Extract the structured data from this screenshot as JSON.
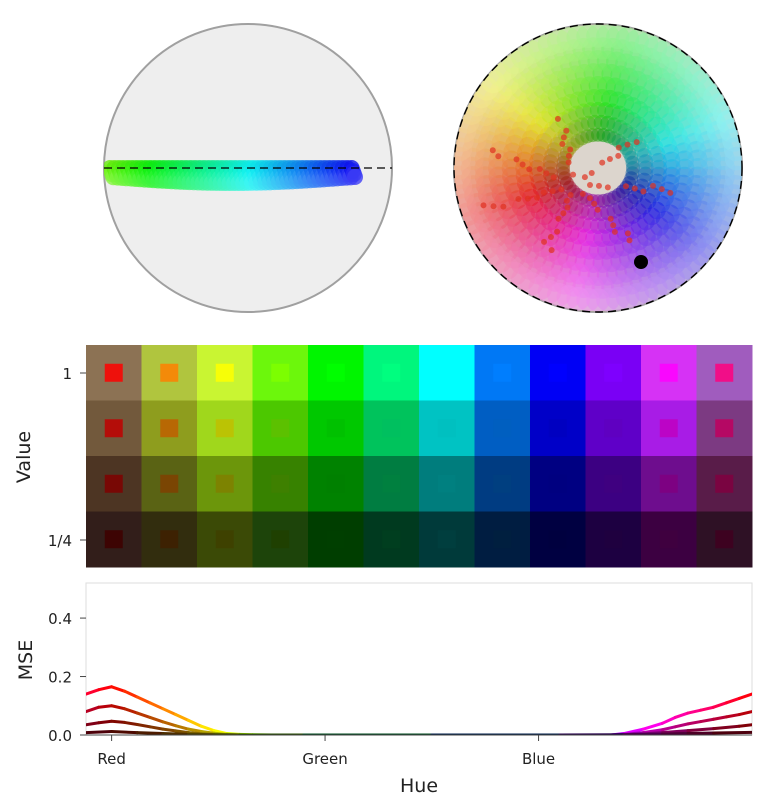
{
  "chart_data": [
    {
      "type": "scatter",
      "panel": "hue-ring-projection-side",
      "title": "",
      "xlabel": "",
      "ylabel": "",
      "grid": false,
      "colors": {
        "background": "#eeeeee",
        "outline": "#a0a0a0",
        "reference_line": "#000000"
      }
    },
    {
      "type": "scatter",
      "panel": "hue-ring-projection-top",
      "title": "",
      "xlabel": "",
      "ylabel": "",
      "grid": false,
      "colors": {
        "background": "#eeeeee",
        "outline": "#000000",
        "marker": "#000000"
      }
    },
    {
      "type": "heatmap",
      "panel": "color-swatch-grid",
      "xlabel": "",
      "ylabel": "Value",
      "y_ticks": [
        "1",
        "1/4"
      ],
      "columns": 12,
      "rows": 4,
      "row_values": [
        1,
        0.75,
        0.5,
        0.25
      ],
      "target_colors": [
        "#ff0000",
        "#ff7f00",
        "#ffff00",
        "#7fff00",
        "#00ff00",
        "#00ff7f",
        "#00ffff",
        "#007fff",
        "#0000ff",
        "#7f00ff",
        "#ff00ff",
        "#ff007f"
      ],
      "cell_colors": [
        [
          "#8c7254",
          "#b0c53e",
          "#c9f532",
          "#6cf70c",
          "#00f500",
          "#00f67d",
          "#00ffff",
          "#0078f5",
          "#0000f5",
          "#7a00f5",
          "#d632f5",
          "#a05cbe"
        ],
        [
          "#72593c",
          "#8e9d1e",
          "#a0d71c",
          "#4cc800",
          "#00c800",
          "#00c35c",
          "#00c3c3",
          "#005ec3",
          "#0000c8",
          "#5f00c8",
          "#a81ce6",
          "#7c3a82"
        ],
        [
          "#4d3523",
          "#5a6314",
          "#6c960b",
          "#378200",
          "#008200",
          "#007d41",
          "#007d7d",
          "#003c82",
          "#000082",
          "#3c0082",
          "#6e0d8e",
          "#591c49"
        ],
        [
          "#321e1a",
          "#322d0e",
          "#3b4a06",
          "#1d440a",
          "#003e00",
          "#003a1f",
          "#003a3a",
          "#001d41",
          "#000041",
          "#1d0041",
          "#3c0041",
          "#2e1125"
        ]
      ]
    },
    {
      "type": "line",
      "panel": "error-by-hue",
      "xlabel": "Hue",
      "ylabel": "MSE",
      "x_tick_labels": [
        "Red",
        "Green",
        "Blue"
      ],
      "x_tick_positions": [
        0,
        0.3333,
        0.6667
      ],
      "xlim": [
        -0.04,
        1.0
      ],
      "ylim": [
        0,
        0.52
      ],
      "y_ticks": [
        0.0,
        0.2,
        0.4
      ],
      "grid": false,
      "series": [
        {
          "value_level": 1,
          "x": [
            -0.04,
            -0.02,
            0,
            0.02,
            0.04,
            0.06,
            0.08,
            0.1,
            0.12,
            0.14,
            0.16,
            0.18,
            0.2,
            0.22,
            0.25,
            0.3,
            0.4,
            0.5,
            0.6,
            0.7,
            0.78,
            0.8,
            0.83,
            0.86,
            0.88,
            0.9,
            0.92,
            0.94,
            0.96,
            0.98,
            1.0
          ],
          "y": [
            0.14,
            0.155,
            0.165,
            0.15,
            0.13,
            0.11,
            0.09,
            0.07,
            0.05,
            0.03,
            0.015,
            0.005,
            0.002,
            0.001,
            0.0,
            0.0,
            0.0,
            0.0,
            0.0,
            0.0,
            0.0,
            0.005,
            0.02,
            0.04,
            0.06,
            0.075,
            0.085,
            0.095,
            0.11,
            0.125,
            0.14
          ]
        },
        {
          "value_level": 0.75,
          "x": [
            -0.04,
            -0.02,
            0,
            0.02,
            0.04,
            0.06,
            0.08,
            0.1,
            0.12,
            0.14,
            0.16,
            0.18,
            0.2,
            0.22,
            0.25,
            0.3,
            0.4,
            0.5,
            0.6,
            0.7,
            0.78,
            0.8,
            0.83,
            0.86,
            0.88,
            0.9,
            0.92,
            0.94,
            0.96,
            0.98,
            1.0
          ],
          "y": [
            0.08,
            0.095,
            0.1,
            0.09,
            0.075,
            0.06,
            0.045,
            0.032,
            0.02,
            0.012,
            0.006,
            0.002,
            0.001,
            0.0,
            0.0,
            0.0,
            0.0,
            0.0,
            0.0,
            0.0,
            0.0,
            0.002,
            0.008,
            0.018,
            0.028,
            0.038,
            0.046,
            0.054,
            0.062,
            0.07,
            0.08
          ]
        },
        {
          "value_level": 0.5,
          "x": [
            -0.04,
            -0.02,
            0,
            0.02,
            0.04,
            0.06,
            0.08,
            0.1,
            0.12,
            0.14,
            0.16,
            0.18,
            0.2,
            0.25,
            0.3,
            0.4,
            0.5,
            0.6,
            0.7,
            0.78,
            0.8,
            0.83,
            0.86,
            0.9,
            0.94,
            0.98,
            1.0
          ],
          "y": [
            0.035,
            0.042,
            0.047,
            0.043,
            0.036,
            0.028,
            0.02,
            0.014,
            0.008,
            0.004,
            0.002,
            0.001,
            0.0,
            0.0,
            0.0,
            0.0,
            0.0,
            0.0,
            0.0,
            0.0,
            0.001,
            0.004,
            0.008,
            0.015,
            0.022,
            0.03,
            0.035
          ]
        },
        {
          "value_level": 0.25,
          "x": [
            -0.04,
            0,
            0.04,
            0.08,
            0.12,
            0.16,
            0.2,
            0.3,
            0.5,
            0.7,
            0.8,
            0.86,
            0.9,
            0.94,
            1.0
          ],
          "y": [
            0.008,
            0.012,
            0.008,
            0.005,
            0.002,
            0.001,
            0.0,
            0.0,
            0.0,
            0.0,
            0.001,
            0.003,
            0.005,
            0.007,
            0.009
          ]
        }
      ]
    }
  ]
}
